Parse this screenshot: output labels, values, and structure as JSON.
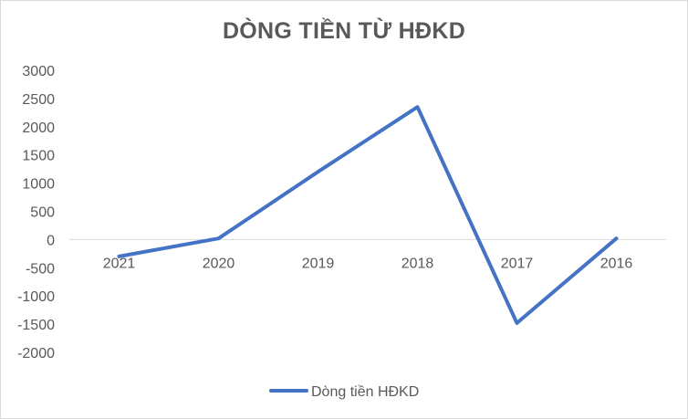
{
  "chart_data": {
    "type": "line",
    "title": "DÒNG TIỀN TỪ HĐKD",
    "categories": [
      "2021",
      "2020",
      "2019",
      "2018",
      "2017",
      "2016"
    ],
    "series": [
      {
        "name": "Dòng tiền HĐKD",
        "values": [
          -300,
          20,
          1200,
          2350,
          -1480,
          20
        ],
        "color": "#4472c4"
      }
    ],
    "y_ticks": [
      "3000",
      "2500",
      "2000",
      "1500",
      "1000",
      "500",
      "0",
      "-500",
      "-1000",
      "-1500",
      "-2000"
    ],
    "ylim": [
      -2000,
      3000
    ],
    "xlabel": "",
    "ylabel": "",
    "grid": false,
    "legend_position": "bottom"
  }
}
